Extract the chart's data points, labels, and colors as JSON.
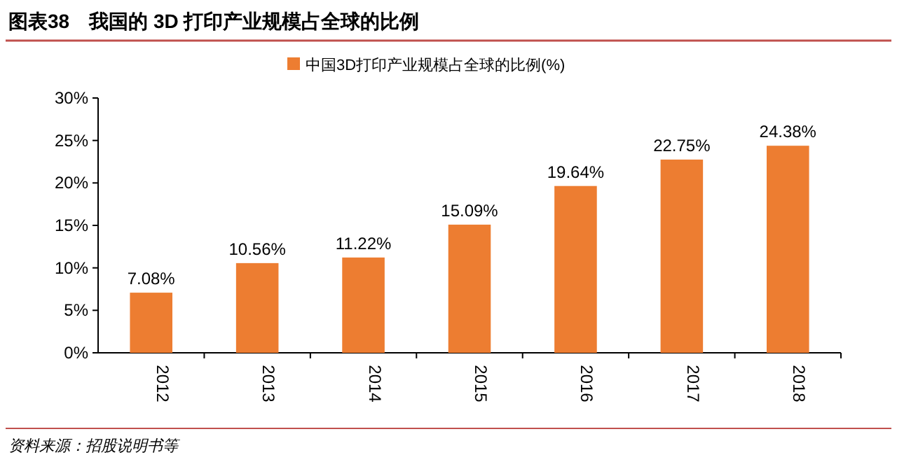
{
  "chart_data": {
    "type": "bar",
    "title": "图表38　我国的 3D 打印产业规模占全球的比例",
    "categories": [
      "2012",
      "2013",
      "2014",
      "2015",
      "2016",
      "2017",
      "2018"
    ],
    "series": [
      {
        "name": "中国3D打印产业规模占全球的比例(%)",
        "color": "#ed7d31",
        "values": [
          7.08,
          10.56,
          11.22,
          15.09,
          19.64,
          22.75,
          24.38
        ],
        "value_labels": [
          "7.08%",
          "10.56%",
          "11.22%",
          "15.09%",
          "19.64%",
          "22.75%",
          "24.38%"
        ]
      }
    ],
    "ylim": [
      0,
      30
    ],
    "yticks": [
      {
        "value": 0,
        "label": "0%"
      },
      {
        "value": 5,
        "label": "5%"
      },
      {
        "value": 10,
        "label": "10%"
      },
      {
        "value": 15,
        "label": "15%"
      },
      {
        "value": 20,
        "label": "20%"
      },
      {
        "value": 25,
        "label": "25%"
      },
      {
        "value": 30,
        "label": "30%"
      }
    ],
    "legend": "top",
    "grid": false,
    "annotations": [
      "资料来源：招股说明书等"
    ]
  }
}
